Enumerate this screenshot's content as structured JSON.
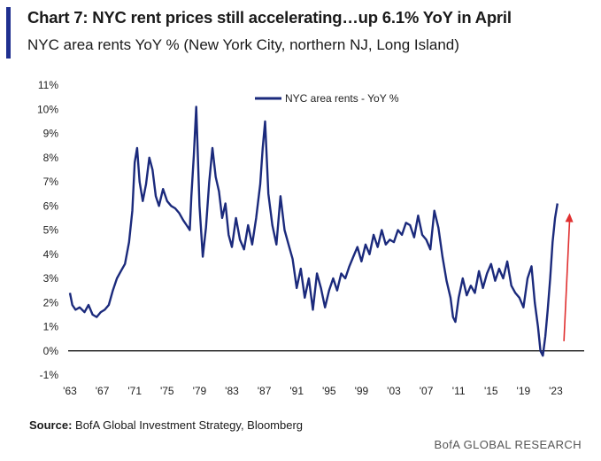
{
  "header": {
    "title": "Chart 7: NYC rent prices still accelerating…up 6.1% YoY in April",
    "subtitle": "NYC area rents YoY % (New York City, northern NJ, Long Island)"
  },
  "footer": {
    "source_label": "Source:",
    "source_text": "BofA Global Investment Strategy, Bloomberg",
    "brand": "BofA GLOBAL RESEARCH"
  },
  "colors": {
    "accent": "#1f2f8f",
    "series": "#1b2a7c",
    "arrow": "#e03030",
    "zero_line": "#000000"
  },
  "chart_data": {
    "type": "line",
    "title": "NYC area rents YoY % (New York City, northern NJ, Long Island)",
    "xlabel": "",
    "ylabel": "",
    "xlim": [
      1963,
      2026.5
    ],
    "ylim": [
      -1,
      11
    ],
    "y_ticks": [
      -1,
      0,
      1,
      2,
      3,
      4,
      5,
      6,
      7,
      8,
      9,
      10,
      11
    ],
    "y_tick_labels": [
      "-1%",
      "0%",
      "1%",
      "2%",
      "3%",
      "4%",
      "5%",
      "6%",
      "7%",
      "8%",
      "9%",
      "10%",
      "11%"
    ],
    "x_ticks": [
      1963,
      1967,
      1971,
      1975,
      1979,
      1983,
      1987,
      1991,
      1995,
      1999,
      2003,
      2007,
      2011,
      2015,
      2019,
      2023
    ],
    "x_tick_labels": [
      "'63",
      "'67",
      "'71",
      "'75",
      "'79",
      "'83",
      "'87",
      "'91",
      "'95",
      "'99",
      "'03",
      "'07",
      "'11",
      "'15",
      "'19",
      "'23"
    ],
    "legend": {
      "label": "NYC area rents - YoY %",
      "position": "top-center"
    },
    "grid": false,
    "annotation": {
      "type": "arrow",
      "from": [
        2024.0,
        0.4
      ],
      "to": [
        2024.7,
        5.7
      ],
      "meaning": "rising trend"
    },
    "series": [
      {
        "name": "NYC area rents - YoY %",
        "x": [
          1963.0,
          1963.3,
          1963.7,
          1964.2,
          1964.8,
          1965.3,
          1965.8,
          1966.3,
          1966.8,
          1967.3,
          1967.8,
          1968.3,
          1968.8,
          1969.3,
          1969.8,
          1970.3,
          1970.7,
          1971.0,
          1971.3,
          1971.6,
          1972.0,
          1972.4,
          1972.8,
          1973.2,
          1973.6,
          1974.0,
          1974.5,
          1975.0,
          1975.5,
          1976.0,
          1976.5,
          1977.0,
          1977.4,
          1977.8,
          1978.0,
          1978.3,
          1978.6,
          1979.0,
          1979.4,
          1979.8,
          1980.2,
          1980.6,
          1981.0,
          1981.4,
          1981.8,
          1982.2,
          1982.6,
          1983.0,
          1983.5,
          1984.0,
          1984.5,
          1985.0,
          1985.5,
          1986.0,
          1986.5,
          1986.8,
          1987.1,
          1987.5,
          1988.0,
          1988.5,
          1989.0,
          1989.5,
          1990.0,
          1990.5,
          1991.0,
          1991.5,
          1992.0,
          1992.5,
          1993.0,
          1993.5,
          1994.0,
          1994.5,
          1995.0,
          1995.5,
          1996.0,
          1996.5,
          1997.0,
          1997.5,
          1998.0,
          1998.5,
          1999.0,
          1999.5,
          2000.0,
          2000.5,
          2001.0,
          2001.5,
          2002.0,
          2002.5,
          2003.0,
          2003.5,
          2004.0,
          2004.5,
          2005.0,
          2005.5,
          2006.0,
          2006.5,
          2007.0,
          2007.5,
          2008.0,
          2008.5,
          2009.0,
          2009.5,
          2010.0,
          2010.3,
          2010.6,
          2011.0,
          2011.5,
          2012.0,
          2012.5,
          2013.0,
          2013.5,
          2014.0,
          2014.5,
          2015.0,
          2015.5,
          2016.0,
          2016.5,
          2017.0,
          2017.5,
          2018.0,
          2018.5,
          2019.0,
          2019.5,
          2020.0,
          2020.4,
          2020.8,
          2021.1,
          2021.4,
          2021.7,
          2022.0,
          2022.3,
          2022.6,
          2022.9,
          2023.2
        ],
        "values": [
          2.4,
          1.9,
          1.7,
          1.8,
          1.6,
          1.9,
          1.5,
          1.4,
          1.6,
          1.7,
          1.9,
          2.5,
          3.0,
          3.3,
          3.6,
          4.5,
          5.8,
          7.8,
          8.4,
          7.0,
          6.2,
          6.9,
          8.0,
          7.5,
          6.4,
          6.0,
          6.7,
          6.2,
          6.0,
          5.9,
          5.7,
          5.4,
          5.2,
          5.0,
          6.4,
          8.1,
          10.1,
          6.0,
          3.9,
          5.1,
          7.0,
          8.4,
          7.2,
          6.6,
          5.5,
          6.1,
          4.8,
          4.3,
          5.5,
          4.6,
          4.2,
          5.2,
          4.4,
          5.5,
          6.9,
          8.4,
          9.5,
          6.5,
          5.2,
          4.4,
          6.4,
          5.0,
          4.4,
          3.8,
          2.6,
          3.4,
          2.2,
          3.0,
          1.7,
          3.2,
          2.6,
          1.8,
          2.5,
          3.0,
          2.5,
          3.2,
          3.0,
          3.5,
          3.9,
          4.3,
          3.7,
          4.4,
          4.0,
          4.8,
          4.3,
          5.0,
          4.4,
          4.6,
          4.5,
          5.0,
          4.8,
          5.3,
          5.2,
          4.7,
          5.6,
          4.8,
          4.6,
          4.2,
          5.8,
          5.1,
          3.9,
          2.9,
          2.2,
          1.4,
          1.2,
          2.2,
          3.0,
          2.3,
          2.7,
          2.4,
          3.3,
          2.6,
          3.2,
          3.6,
          2.9,
          3.4,
          3.0,
          3.7,
          2.7,
          2.4,
          2.2,
          1.8,
          3.0,
          3.5,
          2.0,
          1.0,
          0.0,
          -0.2,
          0.6,
          1.7,
          3.0,
          4.5,
          5.5,
          6.1
        ]
      }
    ]
  }
}
